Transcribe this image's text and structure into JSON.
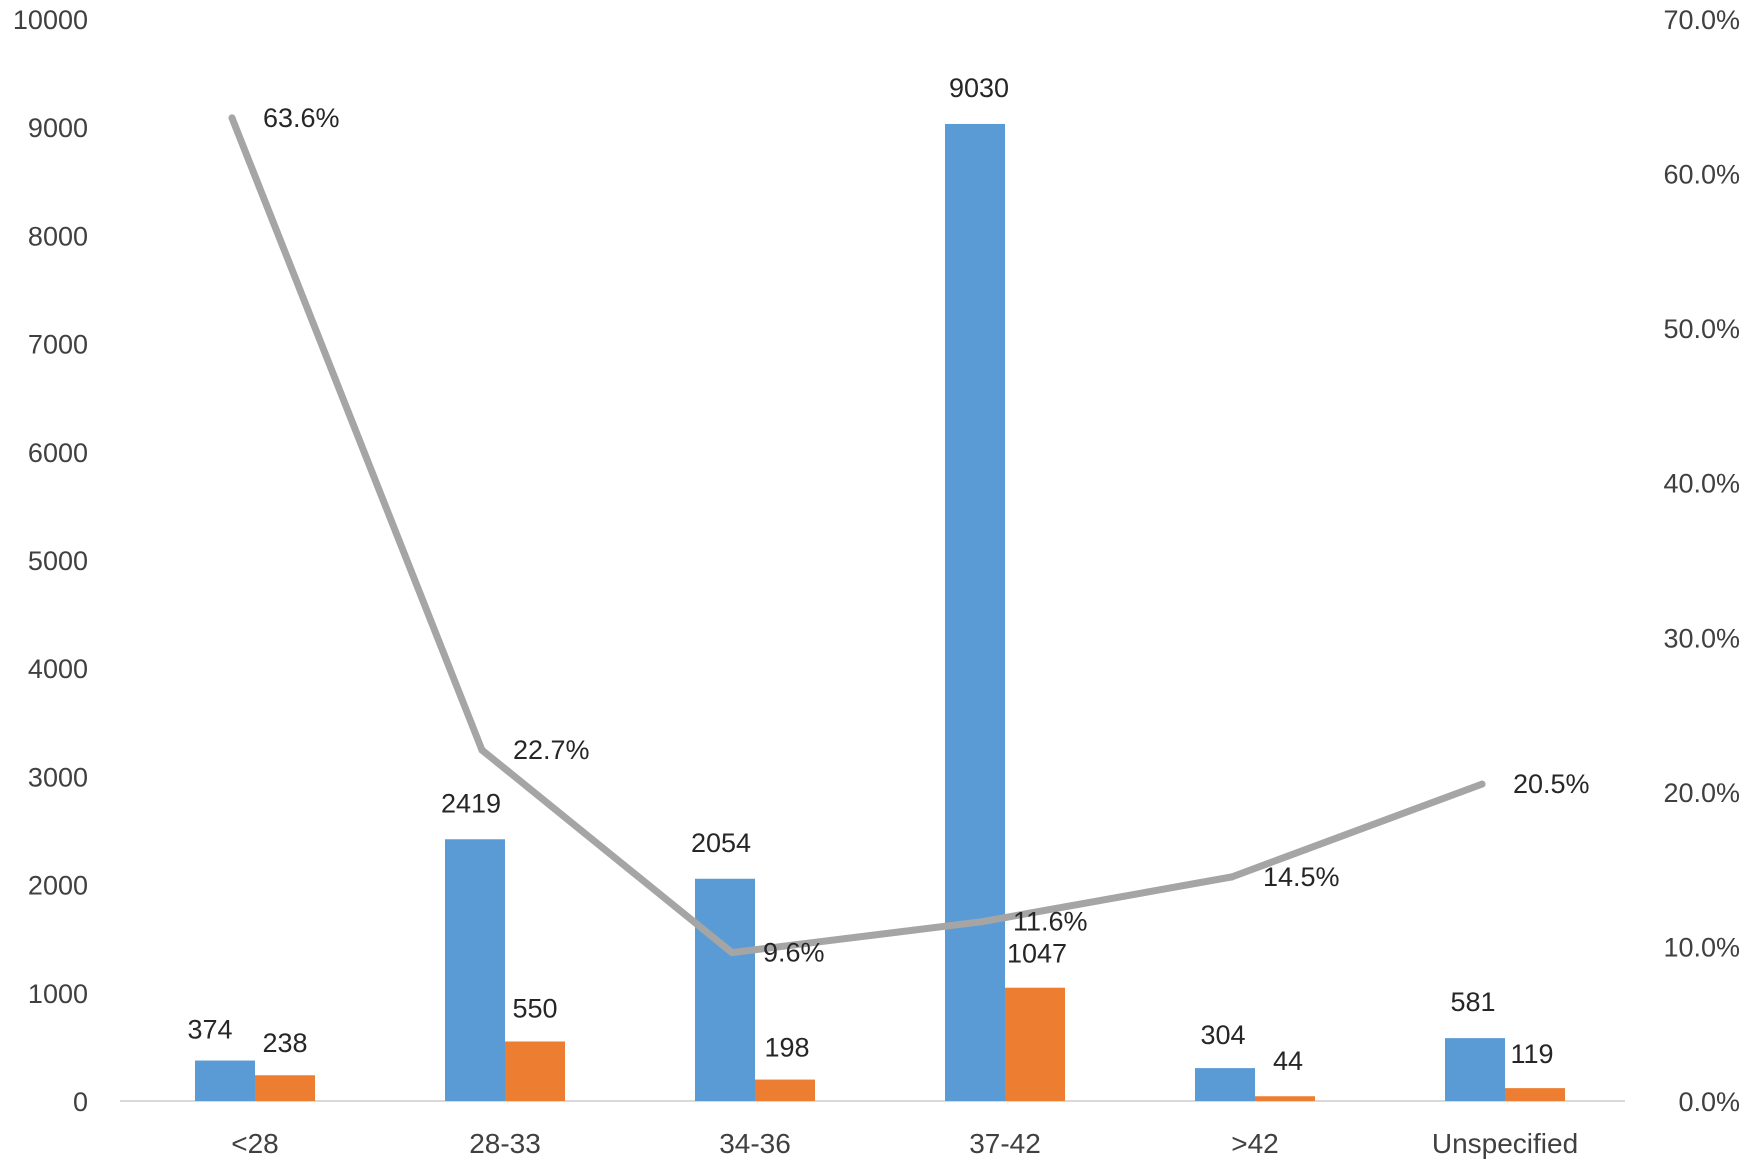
{
  "chart_data": {
    "type": "bar",
    "categories": [
      "<28",
      "28-33",
      "34-36",
      "37-42",
      ">42",
      "Unspecified"
    ],
    "series": [
      {
        "type": "bar",
        "axis": "left",
        "color": "#5B9BD5",
        "values": [
          374,
          2419,
          2054,
          9030,
          304,
          581
        ],
        "labels": [
          "374",
          "2419",
          "2054",
          "9030",
          "304",
          "581"
        ]
      },
      {
        "type": "bar",
        "axis": "left",
        "color": "#ED7D31",
        "values": [
          238,
          550,
          198,
          1047,
          44,
          119
        ],
        "labels": [
          "238",
          "550",
          "198",
          "1047",
          "44",
          "119"
        ]
      },
      {
        "type": "line",
        "axis": "right",
        "color": "#A5A5A5",
        "values": [
          63.6,
          22.7,
          9.6,
          11.6,
          14.5,
          20.5
        ],
        "labels": [
          "63.6%",
          "22.7%",
          "9.6%",
          "11.6%",
          "14.5%",
          "20.5%"
        ]
      }
    ],
    "y_left": {
      "min": 0,
      "max": 10000,
      "ticks": [
        "0",
        "1000",
        "2000",
        "3000",
        "4000",
        "5000",
        "6000",
        "7000",
        "8000",
        "9000",
        "10000"
      ]
    },
    "y_right": {
      "min": 0,
      "max": 70,
      "ticks": [
        "0.0%",
        "10.0%",
        "20.0%",
        "30.0%",
        "40.0%",
        "50.0%",
        "60.0%",
        "70.0%"
      ]
    },
    "grid": false,
    "legend": "none",
    "title": "",
    "xlabel": "",
    "ylabel": ""
  }
}
